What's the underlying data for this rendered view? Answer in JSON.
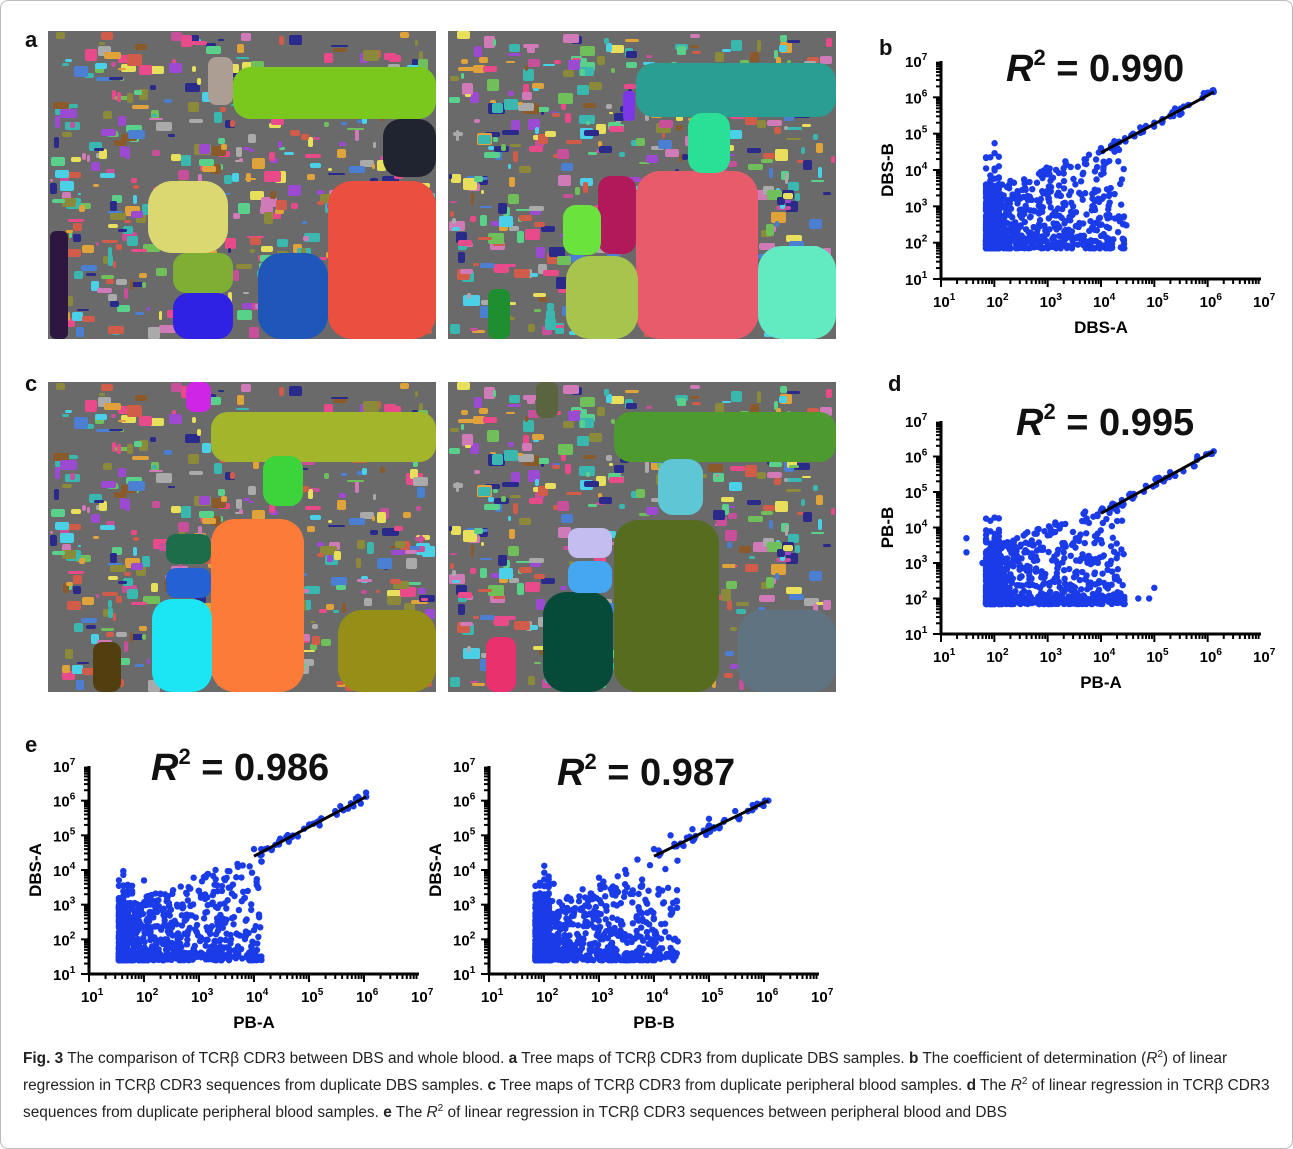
{
  "panels": {
    "a": {
      "letter": "a"
    },
    "b": {
      "letter": "b",
      "r2_prefix": "R",
      "r2_exp": "2",
      "r2_value": " = 0.990"
    },
    "c": {
      "letter": "c"
    },
    "d": {
      "letter": "d",
      "r2_prefix": "R",
      "r2_exp": "2",
      "r2_value": " = 0.995"
    },
    "e": {
      "letter": "e"
    },
    "e1": {
      "r2_prefix": "R",
      "r2_exp": "2",
      "r2_value": " = 0.986"
    },
    "e2": {
      "r2_prefix": "R",
      "r2_exp": "2",
      "r2_value": " = 0.987"
    }
  },
  "tick_base": "10",
  "tick_exponents": [
    "1",
    "2",
    "3",
    "4",
    "5",
    "6",
    "7"
  ],
  "treemaps": {
    "a_left": {
      "background_noise": true,
      "large_blocks": [
        {
          "color": "#7ac81e"
        },
        {
          "color": "#ea4f3f"
        },
        {
          "color": "#1f56b8"
        },
        {
          "color": "#dcd871"
        },
        {
          "color": "#1f2430"
        },
        {
          "color": "#7fae35"
        },
        {
          "color": "#2f22e5"
        },
        {
          "color": "#ad9e94"
        },
        {
          "color": "#2d1640"
        }
      ]
    },
    "a_right": {
      "background_noise": true,
      "large_blocks": [
        {
          "color": "#2a9e93"
        },
        {
          "color": "#e85b6b"
        },
        {
          "color": "#a7c44c"
        },
        {
          "color": "#62ebc1"
        },
        {
          "color": "#b2195a"
        },
        {
          "color": "#6be33d"
        },
        {
          "color": "#29e096"
        },
        {
          "color": "#7c37e6"
        },
        {
          "color": "#1e8e31"
        }
      ]
    },
    "c_left": {
      "background_noise": true,
      "large_blocks": [
        {
          "color": "#a3b52a"
        },
        {
          "color": "#fd7b38"
        },
        {
          "color": "#1ce5f4"
        },
        {
          "color": "#968f17"
        },
        {
          "color": "#3dd33a"
        },
        {
          "color": "#1d6d4b"
        },
        {
          "color": "#2461d2"
        },
        {
          "color": "#cf26e6"
        },
        {
          "color": "#513f0f"
        }
      ]
    },
    "c_right": {
      "background_noise": true,
      "large_blocks": [
        {
          "color": "#4d9a2e"
        },
        {
          "color": "#566c1f"
        },
        {
          "color": "#064b3a"
        },
        {
          "color": "#5f7381"
        },
        {
          "color": "#5ec6d4"
        },
        {
          "color": "#c4bef0"
        },
        {
          "color": "#45a6f2"
        },
        {
          "color": "#e8316d"
        },
        {
          "color": "#5a6540"
        }
      ]
    }
  },
  "chart_data": [
    {
      "panel": "b",
      "type": "scatter",
      "title": "",
      "xlabel": "DBS-A",
      "ylabel": "DBS-B",
      "x_scale": "log",
      "y_scale": "log",
      "xlim": [
        10,
        10000000
      ],
      "ylim": [
        10,
        10000000
      ],
      "r2": 0.99,
      "point_color": "#1a3be8",
      "regression_line": true,
      "fit_points": [
        [
          10000,
          30000
        ],
        [
          1300000,
          1400000
        ]
      ],
      "x_floor": 70,
      "y_floor": 70,
      "sample_points": [
        [
          70,
          4000
        ],
        [
          80,
          300
        ],
        [
          150,
          2000
        ],
        [
          200,
          5000
        ],
        [
          300,
          800
        ],
        [
          500,
          1500
        ],
        [
          800,
          6000
        ],
        [
          1000,
          2000
        ],
        [
          2000,
          8000
        ],
        [
          3000,
          1000
        ],
        [
          5000,
          15000
        ],
        [
          10000,
          40000
        ],
        [
          30000,
          300
        ],
        [
          40000,
          100000
        ],
        [
          100000,
          200000
        ],
        [
          200000,
          300000
        ],
        [
          1300000,
          1400000
        ]
      ]
    },
    {
      "panel": "d",
      "type": "scatter",
      "title": "",
      "xlabel": "PB-A",
      "ylabel": "PB-B",
      "x_scale": "log",
      "y_scale": "log",
      "xlim": [
        10,
        10000000
      ],
      "ylim": [
        10,
        10000000
      ],
      "r2": 0.995,
      "point_color": "#1a3be8",
      "regression_line": true,
      "fit_points": [
        [
          10000,
          25000
        ],
        [
          1300000,
          1400000
        ]
      ],
      "x_floor": 70,
      "y_floor": 70,
      "sample_points": [
        [
          30,
          5000
        ],
        [
          30,
          2000
        ],
        [
          60,
          1000
        ],
        [
          70,
          600
        ],
        [
          150,
          3000
        ],
        [
          300,
          800
        ],
        [
          600,
          1500
        ],
        [
          1000,
          6000
        ],
        [
          2000,
          2000
        ],
        [
          5000,
          15000
        ],
        [
          10000,
          100
        ],
        [
          20000,
          40000
        ],
        [
          50000,
          100
        ],
        [
          80000,
          100
        ],
        [
          100000,
          200
        ],
        [
          150000,
          200000
        ],
        [
          1300000,
          1400000
        ]
      ]
    },
    {
      "panel": "e",
      "type": "scatter",
      "title": "",
      "xlabel": "PB-A",
      "ylabel": "DBS-A",
      "x_scale": "log",
      "y_scale": "log",
      "xlim": [
        10,
        10000000
      ],
      "ylim": [
        10,
        10000000
      ],
      "r2": 0.986,
      "point_color": "#1a3be8",
      "regression_line": true,
      "fit_points": [
        [
          10000,
          25000
        ],
        [
          1100000,
          1300000
        ]
      ],
      "x_floor": 35,
      "y_floor": 25,
      "sample_points": [
        [
          35,
          3500
        ],
        [
          40,
          800
        ],
        [
          100,
          5000
        ],
        [
          200,
          2000
        ],
        [
          400,
          1000
        ],
        [
          800,
          6000
        ],
        [
          1000,
          2500
        ],
        [
          2000,
          10000
        ],
        [
          3000,
          300
        ],
        [
          5000,
          15000
        ],
        [
          10000,
          40000
        ],
        [
          30000,
          80000
        ],
        [
          100000,
          200000
        ],
        [
          300000,
          500000
        ],
        [
          1100000,
          1300000
        ]
      ]
    },
    {
      "panel": "e",
      "type": "scatter",
      "title": "",
      "xlabel": "PB-B",
      "ylabel": "DBS-A",
      "x_scale": "log",
      "y_scale": "log",
      "xlim": [
        10,
        10000000
      ],
      "ylim": [
        10,
        10000000
      ],
      "r2": 0.987,
      "point_color": "#1a3be8",
      "regression_line": true,
      "fit_points": [
        [
          10000,
          25000
        ],
        [
          1200000,
          1000000
        ]
      ],
      "x_floor": 70,
      "y_floor": 25,
      "sample_points": [
        [
          70,
          3500
        ],
        [
          80,
          600
        ],
        [
          150,
          4000
        ],
        [
          300,
          1500
        ],
        [
          500,
          800
        ],
        [
          1000,
          6000
        ],
        [
          2000,
          3000
        ],
        [
          3000,
          10000
        ],
        [
          5000,
          20000
        ],
        [
          10000,
          40000
        ],
        [
          20000,
          100000
        ],
        [
          50000,
          150000
        ],
        [
          100000,
          300000
        ],
        [
          300000,
          500000
        ],
        [
          1200000,
          1000000
        ]
      ]
    }
  ],
  "caption": {
    "fig_label": "Fig. 3",
    "intro": "  The comparison of TCRβ CDR3 between DBS and whole blood. ",
    "a_label": "a",
    "a_text": " Tree maps of TCRβ CDR3 from duplicate DBS samples. ",
    "b_label": "b",
    "b_text1": " The coefficient of determination (",
    "b_r": "R",
    "b_sup": "2",
    "b_text2": ") of linear regression in TCRβ CDR3 sequences from duplicate DBS samples. ",
    "c_label": "c",
    "c_text": " Tree maps of TCRβ CDR3 from duplicate peripheral blood samples. ",
    "d_label": "d",
    "d_text1": " The ",
    "d_r": "R",
    "d_sup": "2",
    "d_text2": " of linear regression in TCRβ CDR3 sequences from duplicate peripheral blood samples. ",
    "e_label": "e",
    "e_text1": " The ",
    "e_r": "R",
    "e_sup": "2",
    "e_text2": " of linear regression in TCRβ CDR3 sequences between peripheral blood and DBS"
  }
}
